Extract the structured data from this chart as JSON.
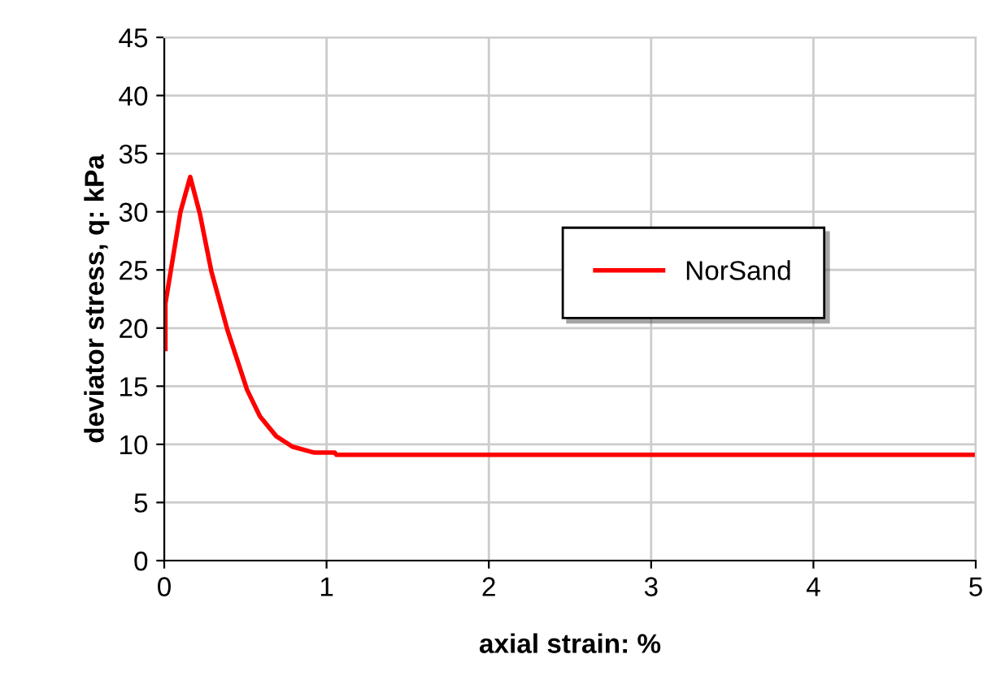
{
  "chart_data": {
    "type": "line",
    "xlabel": "axial strain: %",
    "ylabel": "deviator stress, q: kPa",
    "series": [
      {
        "name": "NorSand",
        "color": "#ff0000",
        "x": [
          0.007,
          0.007,
          0.04,
          0.1,
          0.16,
          0.22,
          0.29,
          0.39,
          0.51,
          0.59,
          0.69,
          0.79,
          0.92,
          1.05,
          1.06,
          5
        ],
        "values": [
          18.2,
          22.1,
          24.9,
          30,
          33,
          29.8,
          24.9,
          19.8,
          14.7,
          12.4,
          10.7,
          9.8,
          9.3,
          9.3,
          9.1,
          9.1
        ]
      }
    ],
    "xlim": [
      0,
      5
    ],
    "xticks": [
      0,
      1,
      2,
      3,
      4,
      5
    ],
    "ylim": [
      0,
      45
    ],
    "yticks": [
      0,
      5,
      10,
      15,
      20,
      25,
      30,
      35,
      40,
      45
    ],
    "grid": true,
    "legend": "right",
    "marker": "none",
    "line_style": "solid"
  }
}
